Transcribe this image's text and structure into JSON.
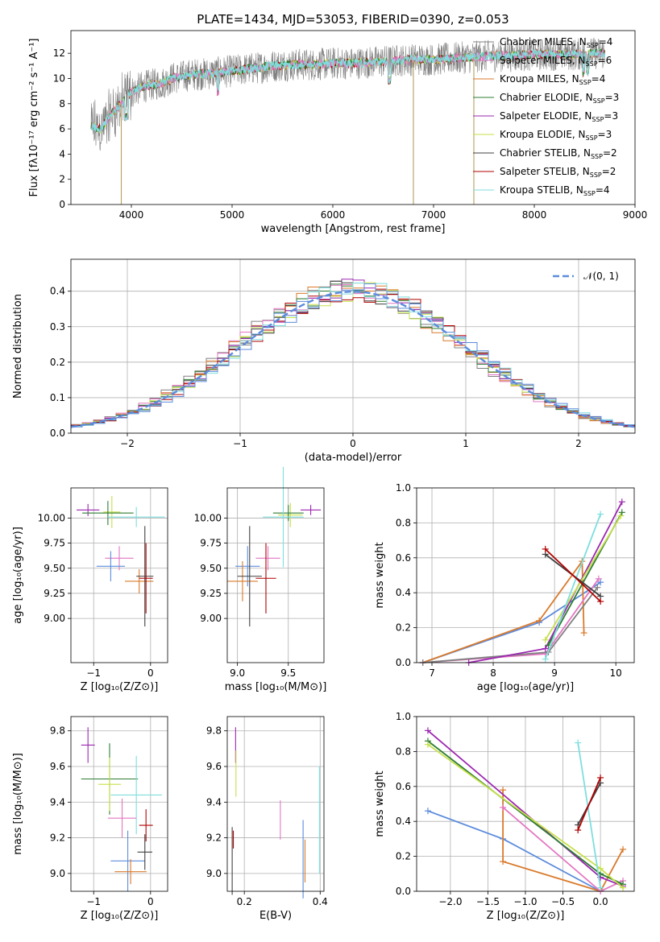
{
  "colors": {
    "chabrier_miles": "#808080",
    "salpeter_miles": "#e377c2",
    "kroupa_miles": "#d97a2b",
    "chabrier_elodie": "#2e7d32",
    "salpeter_elodie": "#9c27b0",
    "kroupa_elodie": "#c6e04a",
    "chabrier_stelib": "#404040",
    "salpeter_stelib": "#b00000",
    "kroupa_stelib": "#7fdede",
    "normal": "#5b8bdc"
  },
  "chart_data": [
    {
      "id": "spectrum",
      "type": "line",
      "title": "PLATE=1434, MJD=53053, FIBERID=0390, z=0.053",
      "xlabel": "wavelength [Angstrom, rest frame]",
      "ylabel": "Flux [fλ10⁻¹⁷ erg cm⁻² s⁻¹ A⁻¹]",
      "xlim": [
        3400,
        9000
      ],
      "ylim": [
        0,
        13.8
      ],
      "xticks": [
        4000,
        5000,
        6000,
        7000,
        8000,
        9000
      ],
      "yticks": [
        0,
        2,
        4,
        6,
        8,
        10,
        12
      ],
      "grid": false,
      "legend_position": "top-right",
      "legend": [
        {
          "name": "Chabrier MILES, N",
          "sub": "SSP",
          "tail": "=4",
          "color_key": "chabrier_miles"
        },
        {
          "name": "Salpeter MILES, N",
          "sub": "SSP",
          "tail": "=6",
          "color_key": "salpeter_miles"
        },
        {
          "name": "Kroupa MILES, N",
          "sub": "SSP",
          "tail": "=4",
          "color_key": "kroupa_miles"
        },
        {
          "name": "Chabrier ELODIE, N",
          "sub": "SSP",
          "tail": "=3",
          "color_key": "chabrier_elodie"
        },
        {
          "name": "Salpeter ELODIE, N",
          "sub": "SSP",
          "tail": "=3",
          "color_key": "salpeter_elodie"
        },
        {
          "name": "Kroupa ELODIE, N",
          "sub": "SSP",
          "tail": "=3",
          "color_key": "kroupa_elodie"
        },
        {
          "name": "Chabrier STELIB, N",
          "sub": "SSP",
          "tail": "=2",
          "color_key": "chabrier_stelib"
        },
        {
          "name": "Salpeter STELIB, N",
          "sub": "SSP",
          "tail": "=2",
          "color_key": "salpeter_stelib"
        },
        {
          "name": "Kroupa STELIB, N",
          "sub": "SSP",
          "tail": "=4",
          "color_key": "kroupa_stelib"
        }
      ],
      "continuum": {
        "x": [
          3600,
          3700,
          3800,
          3900,
          4000,
          4100,
          4200,
          4300,
          4400,
          4600,
          4800,
          5000,
          5200,
          5400,
          5600,
          5800,
          6000,
          6200,
          6400,
          6600,
          6800,
          7000,
          7200,
          7400,
          7600,
          7800,
          8000,
          8200,
          8400,
          8600,
          8700
        ],
        "y": [
          6.2,
          6.0,
          7.2,
          8.0,
          8.9,
          9.3,
          9.5,
          9.6,
          10.0,
          10.3,
          10.4,
          10.6,
          10.8,
          11.0,
          11.1,
          11.1,
          11.2,
          11.2,
          11.3,
          11.4,
          11.5,
          11.5,
          11.6,
          11.7,
          11.8,
          11.8,
          11.9,
          11.9,
          11.9,
          12.0,
          12.0
        ]
      },
      "data_dropouts": [
        3900,
        6800,
        7400
      ]
    },
    {
      "id": "residuals",
      "type": "histogram",
      "xlabel": "(data-model)/error",
      "ylabel": "Normed distribution",
      "xlim": [
        -2.5,
        2.5
      ],
      "ylim": [
        0,
        0.49
      ],
      "xticks": [
        -2,
        -1,
        0,
        1,
        2
      ],
      "xtick_labels": [
        "−2",
        "−1",
        "0",
        "1",
        "2"
      ],
      "yticks": [
        0.0,
        0.1,
        0.2,
        0.3,
        0.4
      ],
      "grid": true,
      "legend_position": "top-right",
      "legend": [
        {
          "name": "𝒩(0, 1)",
          "color_key": "normal"
        }
      ],
      "bin_width": 0.1,
      "reference_curve": "normal pdf, mean 0, sd 1"
    },
    {
      "id": "age_vs_z",
      "type": "errorbar",
      "xlabel": "Z [log₁₀(Z/Z⊙)]",
      "ylabel": "age  [log₁₀(age/yr)]",
      "xlim": [
        -1.4,
        0.3
      ],
      "ylim": [
        8.56,
        10.3
      ],
      "xticks": [
        -1,
        0
      ],
      "xtick_labels": [
        "−1",
        "0"
      ],
      "yticks": [
        9.0,
        9.25,
        9.5,
        9.75,
        10.0
      ],
      "ytick_labels": [
        "9.00",
        "9.25",
        "9.50",
        "9.75",
        "10.00"
      ],
      "grid": true,
      "points": [
        {
          "color_key": "salpeter_elodie",
          "x": -1.1,
          "xerr": 0.2,
          "y": 10.08,
          "yerr": 0.06
        },
        {
          "color_key": "kroupa_elodie",
          "x": -0.68,
          "xerr": 0.15,
          "y": 10.06,
          "yerr": 0.16
        },
        {
          "color_key": "chabrier_elodie",
          "x": -0.75,
          "xerr": 0.45,
          "y": 10.05,
          "yerr": 0.12
        },
        {
          "color_key": "kroupa_stelib",
          "x": -0.25,
          "xerr": 0.5,
          "y": 10.01,
          "yerr": 0.1
        },
        {
          "color_key": "salpeter_miles",
          "x": -0.55,
          "xerr": 0.25,
          "y": 9.6,
          "yerr": 0.12
        },
        {
          "color_key": "normal",
          "x": -0.7,
          "xerr": 0.25,
          "y": 9.52,
          "yerr": 0.15
        },
        {
          "color_key": "kroupa_miles",
          "x": -0.2,
          "xerr": 0.25,
          "y": 9.37,
          "yerr": 0.12
        },
        {
          "color_key": "chabrier_stelib",
          "x": -0.1,
          "xerr": 0.15,
          "y": 9.42,
          "yerr": 0.5
        },
        {
          "color_key": "salpeter_stelib",
          "x": -0.08,
          "xerr": 0.12,
          "y": 9.4,
          "yerr": 0.35
        }
      ]
    },
    {
      "id": "age_vs_mass",
      "type": "errorbar",
      "xlabel": "mass [log₁₀(M/M⊙)]",
      "ylabel": "",
      "xlim": [
        8.9,
        9.85
      ],
      "ylim": [
        8.56,
        10.3
      ],
      "xticks": [
        9.0,
        9.5
      ],
      "xtick_labels": [
        "9.0",
        "9.5"
      ],
      "yticks": [
        9.0,
        9.25,
        9.5,
        9.75,
        10.0
      ],
      "ytick_labels": [
        "9.00",
        "9.25",
        "9.50",
        "9.75",
        "10.00"
      ],
      "grid": true,
      "points": [
        {
          "color_key": "salpeter_elodie",
          "x": 9.72,
          "xerr": 0.1,
          "y": 10.08,
          "yerr": 0.05
        },
        {
          "color_key": "kroupa_elodie",
          "x": 9.52,
          "xerr": 0.12,
          "y": 10.03,
          "yerr": 0.12
        },
        {
          "color_key": "chabrier_elodie",
          "x": 9.5,
          "xerr": 0.15,
          "y": 10.05,
          "yerr": 0.08
        },
        {
          "color_key": "kroupa_stelib",
          "x": 9.45,
          "xerr": 0.2,
          "y": 10.01,
          "yerr": 0.5
        },
        {
          "color_key": "salpeter_miles",
          "x": 9.3,
          "xerr": 0.12,
          "y": 9.6,
          "yerr": 0.12
        },
        {
          "color_key": "normal",
          "x": 9.1,
          "xerr": 0.12,
          "y": 9.52,
          "yerr": 0.2
        },
        {
          "color_key": "kroupa_miles",
          "x": 9.05,
          "xerr": 0.15,
          "y": 9.37,
          "yerr": 0.2
        },
        {
          "color_key": "chabrier_stelib",
          "x": 9.12,
          "xerr": 0.12,
          "y": 9.42,
          "yerr": 0.5
        },
        {
          "color_key": "salpeter_stelib",
          "x": 9.28,
          "xerr": 0.1,
          "y": 9.4,
          "yerr": 0.35
        }
      ]
    },
    {
      "id": "weight_vs_age",
      "type": "line",
      "xlabel": "age  [log₁₀(age/yr)]",
      "ylabel": "mass weight",
      "xlim": [
        6.75,
        10.3
      ],
      "ylim": [
        0,
        1.0
      ],
      "xticks": [
        7,
        8,
        9,
        10
      ],
      "yticks": [
        0.0,
        0.2,
        0.4,
        0.6,
        0.8,
        1.0
      ],
      "grid": true,
      "series": [
        {
          "color_key": "normal",
          "x": [
            6.85,
            8.75,
            9.75
          ],
          "y": [
            0.0,
            0.23,
            0.46
          ]
        },
        {
          "color_key": "kroupa_miles",
          "x": [
            6.85,
            8.75,
            9.45,
            9.48
          ],
          "y": [
            0.0,
            0.24,
            0.58,
            0.17
          ]
        },
        {
          "color_key": "salpeter_miles",
          "x": [
            6.85,
            8.85,
            9.72
          ],
          "y": [
            0.0,
            0.05,
            0.48
          ]
        },
        {
          "color_key": "chabrier_miles",
          "x": [
            6.85,
            8.9,
            9.7
          ],
          "y": [
            0.0,
            0.06,
            0.43
          ]
        },
        {
          "color_key": "salpeter_elodie",
          "x": [
            7.6,
            8.85,
            10.1
          ],
          "y": [
            0.0,
            0.08,
            0.92
          ]
        },
        {
          "color_key": "chabrier_elodie",
          "x": [
            8.9,
            10.1
          ],
          "y": [
            0.1,
            0.86
          ]
        },
        {
          "color_key": "kroupa_elodie",
          "x": [
            8.85,
            10.08
          ],
          "y": [
            0.13,
            0.84
          ]
        },
        {
          "color_key": "kroupa_stelib",
          "x": [
            8.85,
            9.75
          ],
          "y": [
            0.02,
            0.85
          ]
        },
        {
          "color_key": "chabrier_stelib",
          "x": [
            8.85,
            9.75
          ],
          "y": [
            0.62,
            0.38
          ]
        },
        {
          "color_key": "salpeter_stelib",
          "x": [
            8.85,
            9.75
          ],
          "y": [
            0.65,
            0.35
          ]
        }
      ]
    },
    {
      "id": "mass_vs_z",
      "type": "errorbar",
      "xlabel": "Z [log₁₀(Z/Z⊙)]",
      "ylabel": "mass [log₁₀(M/M⊙)]",
      "xlim": [
        -1.4,
        0.3
      ],
      "ylim": [
        8.9,
        9.88
      ],
      "xticks": [
        -1,
        0
      ],
      "xtick_labels": [
        "−1",
        "0"
      ],
      "yticks": [
        9.0,
        9.2,
        9.4,
        9.6,
        9.8
      ],
      "grid": true,
      "points": [
        {
          "color_key": "salpeter_elodie",
          "x": -1.1,
          "xerr": 0.12,
          "y": 9.72,
          "yerr": 0.1
        },
        {
          "color_key": "chabrier_elodie",
          "x": -0.72,
          "xerr": 0.5,
          "y": 9.53,
          "yerr": 0.2
        },
        {
          "color_key": "kroupa_elodie",
          "x": -0.72,
          "xerr": 0.2,
          "y": 9.5,
          "yerr": 0.15
        },
        {
          "color_key": "kroupa_stelib",
          "x": -0.25,
          "xerr": 0.45,
          "y": 9.44,
          "yerr": 0.22
        },
        {
          "color_key": "salpeter_miles",
          "x": -0.5,
          "xerr": 0.25,
          "y": 9.31,
          "yerr": 0.11
        },
        {
          "color_key": "normal",
          "x": -0.4,
          "xerr": 0.3,
          "y": 9.07,
          "yerr": 0.17
        },
        {
          "color_key": "kroupa_miles",
          "x": -0.35,
          "xerr": 0.28,
          "y": 9.01,
          "yerr": 0.07
        },
        {
          "color_key": "chabrier_stelib",
          "x": -0.1,
          "xerr": 0.13,
          "y": 9.12,
          "yerr": 0.1
        },
        {
          "color_key": "salpeter_stelib",
          "x": -0.08,
          "xerr": 0.12,
          "y": 9.27,
          "yerr": 0.09
        }
      ]
    },
    {
      "id": "mass_vs_ebv",
      "type": "errorbar",
      "xlabel": "E(B-V)",
      "ylabel": "",
      "xlim": [
        0.155,
        0.41
      ],
      "ylim": [
        8.9,
        9.88
      ],
      "xticks": [
        0.2,
        0.4
      ],
      "xtick_labels": [
        "0.2",
        "0.4"
      ],
      "yticks": [
        9.0,
        9.2,
        9.4,
        9.6,
        9.8
      ],
      "grid": true,
      "points": [
        {
          "color_key": "salpeter_elodie",
          "x": 0.177,
          "y": 9.72,
          "yerr": 0.1
        },
        {
          "color_key": "kroupa_elodie",
          "x": 0.178,
          "y": 9.56,
          "yerr": 0.13
        },
        {
          "color_key": "chabrier_stelib",
          "x": 0.168,
          "y": 9.07,
          "yerr": 0.19
        },
        {
          "color_key": "salpeter_stelib",
          "x": 0.171,
          "y": 9.19,
          "yerr": 0.05
        },
        {
          "color_key": "salpeter_miles",
          "x": 0.295,
          "y": 9.3,
          "yerr": 0.11
        },
        {
          "color_key": "normal",
          "x": 0.355,
          "y": 9.08,
          "yerr": 0.22
        },
        {
          "color_key": "kroupa_miles",
          "x": 0.36,
          "y": 9.07,
          "yerr": 0.12
        },
        {
          "color_key": "kroupa_stelib",
          "x": 0.398,
          "y": 9.3,
          "yerr": 0.3
        }
      ]
    },
    {
      "id": "weight_vs_z",
      "type": "line",
      "xlabel": "Z [log₁₀(Z/Z⊙)]",
      "ylabel": "mass weight",
      "xlim": [
        -2.45,
        0.45
      ],
      "ylim": [
        0,
        1.0
      ],
      "xticks": [
        -2.0,
        -1.5,
        -1.0,
        -0.5,
        0.0
      ],
      "xtick_labels": [
        "−2.0",
        "−1.5",
        "−1.0",
        "−0.5",
        "0.0"
      ],
      "yticks": [
        0.0,
        0.2,
        0.4,
        0.6,
        0.8,
        1.0
      ],
      "grid": true,
      "series": [
        {
          "color_key": "normal",
          "x": [
            -2.3,
            -1.3,
            0.0
          ],
          "y": [
            0.46,
            0.3,
            0.0
          ]
        },
        {
          "color_key": "kroupa_miles",
          "x": [
            -1.3,
            -1.3,
            0.0,
            0.3
          ],
          "y": [
            0.58,
            0.17,
            0.0,
            0.24
          ]
        },
        {
          "color_key": "salpeter_miles",
          "x": [
            -1.3,
            0.0,
            0.3
          ],
          "y": [
            0.48,
            0.0,
            0.06
          ]
        },
        {
          "color_key": "salpeter_elodie",
          "x": [
            -2.3,
            0.0,
            0.3
          ],
          "y": [
            0.92,
            0.08,
            0.03
          ]
        },
        {
          "color_key": "chabrier_elodie",
          "x": [
            -2.3,
            0.0,
            0.3
          ],
          "y": [
            0.86,
            0.1,
            0.04
          ]
        },
        {
          "color_key": "kroupa_elodie",
          "x": [
            -2.3,
            0.0,
            0.3
          ],
          "y": [
            0.84,
            0.13,
            0.02
          ]
        },
        {
          "color_key": "kroupa_stelib",
          "x": [
            -0.3,
            0.0
          ],
          "y": [
            0.85,
            0.02
          ]
        },
        {
          "color_key": "chabrier_stelib",
          "x": [
            -0.3,
            0.0
          ],
          "y": [
            0.38,
            0.62
          ]
        },
        {
          "color_key": "salpeter_stelib",
          "x": [
            -0.3,
            0.0
          ],
          "y": [
            0.35,
            0.65
          ]
        }
      ]
    }
  ]
}
